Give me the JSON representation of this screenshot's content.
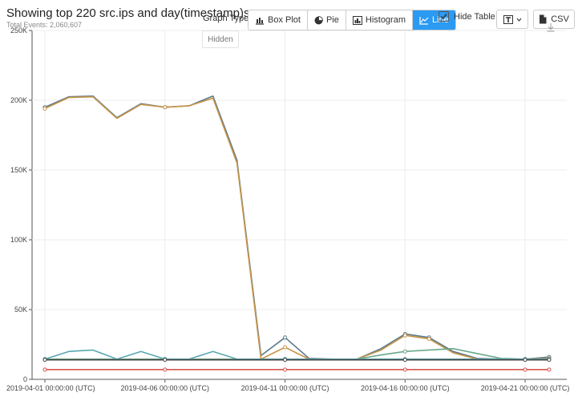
{
  "header": {
    "title": "Showing top 220 src.ips and day(timestamp)s",
    "subtitle": "Total Events: 2,060,607"
  },
  "toolbar": {
    "graph_type_label": "Graph Type",
    "buttons": [
      {
        "label": "Box Plot",
        "icon": "box-plot-icon",
        "active": false
      },
      {
        "label": "Pie",
        "icon": "pie-icon",
        "active": false
      },
      {
        "label": "Histogram",
        "icon": "histogram-icon",
        "active": false
      },
      {
        "label": "Line",
        "icon": "line-chart-icon",
        "active": true
      }
    ],
    "hidden_tooltip": "Hidden",
    "hide_table_label": "Hide Table",
    "hide_table_checked": true,
    "csv_label": "CSV",
    "accent_color": "#2b9af3"
  },
  "chart_data": {
    "type": "line",
    "x": [
      "2019-04-01",
      "2019-04-02",
      "2019-04-03",
      "2019-04-04",
      "2019-04-05",
      "2019-04-06",
      "2019-04-07",
      "2019-04-08",
      "2019-04-09",
      "2019-04-10",
      "2019-04-11",
      "2019-04-12",
      "2019-04-13",
      "2019-04-14",
      "2019-04-15",
      "2019-04-16",
      "2019-04-17",
      "2019-04-18",
      "2019-04-19",
      "2019-04-20",
      "2019-04-21",
      "2019-04-22"
    ],
    "x_tick_labels": [
      "2019-04-01 00:00:00 (UTC)",
      "2019-04-06 00:00:00 (UTC)",
      "2019-04-11 00:00:00 (UTC)",
      "2019-04-16 00:00:00 (UTC)",
      "2019-04-21 00:00:00 (UTC)"
    ],
    "x_tick_indices": [
      0,
      5,
      10,
      15,
      20
    ],
    "y_tick_labels": [
      "0",
      "50K",
      "100K",
      "150K",
      "200K",
      "250K"
    ],
    "y_tick_values": [
      0,
      50000,
      100000,
      150000,
      200000,
      250000
    ],
    "ylim": [
      0,
      250000
    ],
    "grid": true,
    "series": [
      {
        "color": "#5a7a8a",
        "values": [
          195000,
          202500,
          203000,
          187500,
          197500,
          195000,
          196000,
          203000,
          157000,
          17000,
          30000,
          15000,
          14500,
          14500,
          22000,
          32500,
          30000,
          20000,
          15000,
          14500,
          14500,
          16000
        ]
      },
      {
        "color": "#c8954a",
        "values": [
          194000,
          202000,
          202500,
          187000,
          197000,
          195000,
          196000,
          201500,
          155000,
          14500,
          23000,
          14500,
          14500,
          14500,
          21000,
          31500,
          29000,
          19000,
          14500,
          14500,
          14500,
          15000
        ]
      },
      {
        "color": "#6aa88a",
        "values": [
          14500,
          14500,
          14500,
          14500,
          14500,
          14500,
          14500,
          14500,
          14500,
          14500,
          14500,
          14500,
          14500,
          14500,
          17500,
          20000,
          21000,
          22000,
          18500,
          15000,
          14500,
          14500
        ]
      },
      {
        "color": "#5aa8b0",
        "values": [
          14500,
          20000,
          21000,
          14500,
          20000,
          14500,
          14500,
          20000,
          14500,
          14500,
          14500,
          14500,
          14500,
          14500,
          14500,
          14500,
          14500,
          14500,
          14500,
          14500,
          14500,
          14500
        ]
      },
      {
        "color": "#444444",
        "values": [
          14000,
          14000,
          14000,
          14000,
          14000,
          14000,
          14000,
          14000,
          14000,
          14000,
          14000,
          14000,
          14000,
          14000,
          14000,
          14000,
          14000,
          14000,
          14000,
          14000,
          14000,
          14000
        ]
      },
      {
        "color": "#d9534f",
        "values": [
          7000,
          7000,
          7000,
          7000,
          7000,
          7000,
          7000,
          7000,
          7000,
          7000,
          7000,
          7000,
          7000,
          7000,
          7000,
          7000,
          7000,
          7000,
          7000,
          7000,
          7000,
          7000
        ]
      }
    ]
  }
}
